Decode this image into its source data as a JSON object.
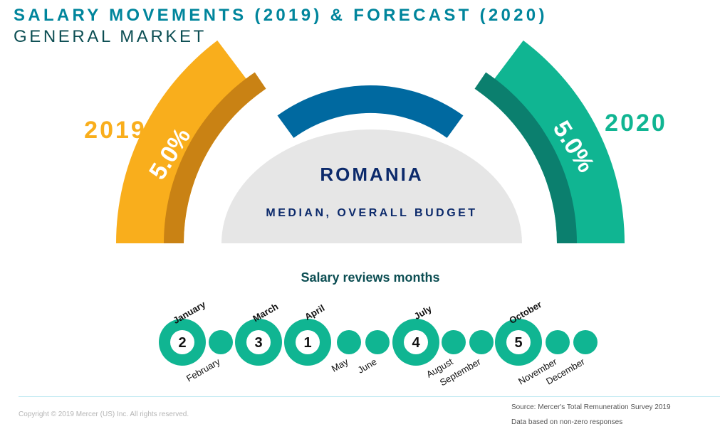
{
  "header": {
    "title": "SALARY MOVEMENTS (2019) & FORECAST (2020)",
    "subtitle": "GENERAL MARKET"
  },
  "gauge": {
    "left": {
      "year": "2019",
      "value": "5.0%",
      "color": "#f9ae1c",
      "dark": "#c98214"
    },
    "right": {
      "year": "2020",
      "value": "5.0%",
      "color": "#10b592",
      "dark": "#0b7f6e"
    },
    "bridge_color": "#0069a0",
    "country": "ROMANIA",
    "caption": "MEDIAN, OVERALL BUDGET"
  },
  "reviews": {
    "title": "Salary reviews months",
    "months": [
      {
        "name": "January",
        "rank": "2"
      },
      {
        "name": "February",
        "rank": null
      },
      {
        "name": "March",
        "rank": "3"
      },
      {
        "name": "April",
        "rank": "1"
      },
      {
        "name": "May",
        "rank": null
      },
      {
        "name": "June",
        "rank": null
      },
      {
        "name": "July",
        "rank": "4"
      },
      {
        "name": "August",
        "rank": null
      },
      {
        "name": "September",
        "rank": null
      },
      {
        "name": "October",
        "rank": "5"
      },
      {
        "name": "November",
        "rank": null
      },
      {
        "name": "December",
        "rank": null
      }
    ]
  },
  "footer": {
    "copyright": "Copyright © 2019 Mercer (US) Inc. All rights reserved.",
    "source": "Source: Mercer's Total Remuneration Survey 2019",
    "note": "Data based on non-zero responses"
  }
}
